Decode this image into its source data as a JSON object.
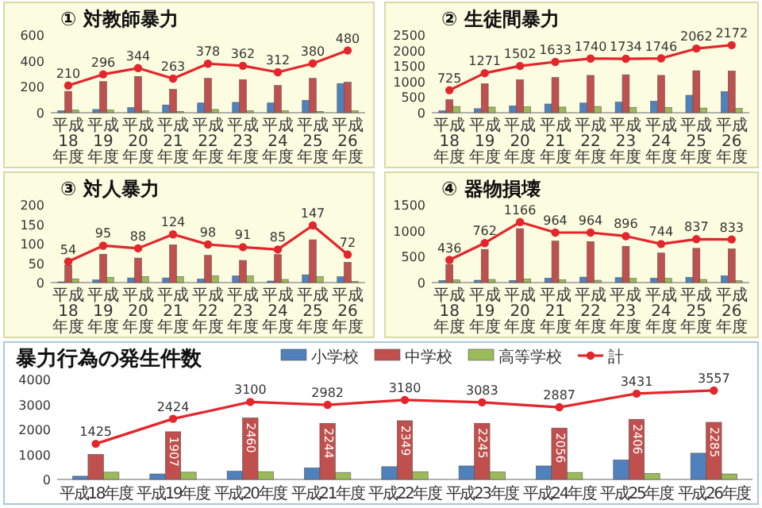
{
  "chart_data": [
    {
      "type": "bar",
      "title": "① 対教師暴力",
      "categories": [
        "平成18年度",
        "平成19年度",
        "平成20年度",
        "平成21年度",
        "平成22年度",
        "平成23年度",
        "平成24年度",
        "平成25年度",
        "平成26年度"
      ],
      "ylim": [
        0,
        600
      ],
      "yticks": [
        0,
        200,
        400,
        600
      ],
      "marker": "circle",
      "legend": false,
      "series": [
        {
          "color": "#4f81bd",
          "values": [
            15,
            25,
            40,
            60,
            75,
            80,
            75,
            95,
            225
          ]
        },
        {
          "color": "#c0504d",
          "values": [
            165,
            240,
            280,
            180,
            265,
            255,
            210,
            265,
            235
          ]
        },
        {
          "color": "#9bbb59",
          "values": [
            20,
            20,
            15,
            10,
            25,
            15,
            15,
            10,
            15
          ]
        },
        {
          "type": "line",
          "color": "#e3262b",
          "values": [
            210,
            296,
            344,
            263,
            378,
            362,
            312,
            380,
            480
          ],
          "value_labels": [
            "210",
            "296",
            "344",
            "263",
            "378",
            "362",
            "312",
            "380",
            "480"
          ]
        }
      ]
    },
    {
      "type": "bar",
      "title": "② 生徒間暴力",
      "categories": [
        "平成18年度",
        "平成19年度",
        "平成20年度",
        "平成21年度",
        "平成22年度",
        "平成23年度",
        "平成24年度",
        "平成25年度",
        "平成26年度"
      ],
      "ylim": [
        0,
        2500
      ],
      "yticks": [
        0,
        500,
        1000,
        1500,
        2000,
        2500
      ],
      "marker": "circle",
      "legend": false,
      "series": [
        {
          "color": "#4f81bd",
          "values": [
            60,
            130,
            220,
            280,
            310,
            340,
            370,
            560,
            680
          ]
        },
        {
          "color": "#c0504d",
          "values": [
            420,
            930,
            1060,
            1130,
            1200,
            1220,
            1200,
            1350,
            1340
          ]
        },
        {
          "color": "#9bbb59",
          "values": [
            200,
            180,
            190,
            180,
            200,
            170,
            170,
            150,
            140
          ]
        },
        {
          "type": "line",
          "color": "#e3262b",
          "values": [
            725,
            1271,
            1502,
            1633,
            1740,
            1734,
            1746,
            2062,
            2172
          ],
          "value_labels": [
            "725",
            "1271",
            "1502",
            "1633",
            "1740",
            "1734",
            "1746",
            "2062",
            "2172"
          ]
        }
      ]
    },
    {
      "type": "bar",
      "title": "③ 対人暴力",
      "categories": [
        "平成18年度",
        "平成19年度",
        "平成20年度",
        "平成21年度",
        "平成22年度",
        "平成23年度",
        "平成24年度",
        "平成25年度",
        "平成26年度"
      ],
      "ylim": [
        0,
        200
      ],
      "yticks": [
        0,
        50,
        100,
        150,
        200
      ],
      "marker": "circle",
      "legend": false,
      "series": [
        {
          "color": "#4f81bd",
          "values": [
            2,
            7,
            12,
            12,
            9,
            17,
            4,
            20,
            15
          ]
        },
        {
          "color": "#c0504d",
          "values": [
            45,
            73,
            63,
            97,
            70,
            57,
            72,
            110,
            52
          ]
        },
        {
          "color": "#9bbb59",
          "values": [
            9,
            13,
            15,
            15,
            17,
            17,
            8,
            15,
            3
          ]
        },
        {
          "type": "line",
          "color": "#e3262b",
          "values": [
            54,
            95,
            88,
            124,
            98,
            91,
            85,
            147,
            72
          ],
          "value_labels": [
            "54",
            "95",
            "88",
            "124",
            "98",
            "91",
            "85",
            "147",
            "72"
          ]
        }
      ]
    },
    {
      "type": "bar",
      "title": "④ 器物損壊",
      "categories": [
        "平成18年度",
        "平成19年度",
        "平成20年度",
        "平成21年度",
        "平成22年度",
        "平成23年度",
        "平成24年度",
        "平成25年度",
        "平成26年度"
      ],
      "ylim": [
        0,
        1500
      ],
      "yticks": [
        0,
        500,
        1000,
        1500
      ],
      "marker": "circle",
      "legend": false,
      "series": [
        {
          "color": "#4f81bd",
          "values": [
            40,
            45,
            40,
            85,
            105,
            95,
            85,
            100,
            130
          ]
        },
        {
          "color": "#c0504d",
          "values": [
            350,
            640,
            1040,
            800,
            790,
            700,
            570,
            660,
            650
          ]
        },
        {
          "color": "#9bbb59",
          "values": [
            50,
            60,
            70,
            55,
            45,
            80,
            80,
            60,
            35
          ]
        },
        {
          "type": "line",
          "color": "#e3262b",
          "values": [
            436,
            762,
            1166,
            964,
            964,
            896,
            744,
            837,
            833
          ],
          "value_labels": [
            "436",
            "762",
            "1166",
            "964",
            "964",
            "896",
            "744",
            "837",
            "833"
          ]
        }
      ]
    },
    {
      "type": "bar",
      "title": "暴力行為の発生件数",
      "categories": [
        "平成18年度",
        "平成19年度",
        "平成20年度",
        "平成21年度",
        "平成22年度",
        "平成23年度",
        "平成24年度",
        "平成25年度",
        "平成26年度"
      ],
      "ylim": [
        0,
        4000
      ],
      "yticks": [
        0,
        1000,
        2000,
        3000,
        4000
      ],
      "marker": "circle",
      "legend": "top",
      "series": [
        {
          "name": "小学校",
          "color": "#4f81bd",
          "values": [
            130,
            220,
            330,
            460,
            510,
            540,
            540,
            780,
            1050
          ]
        },
        {
          "name": "中学校",
          "color": "#c0504d",
          "values": [
            1000,
            1907,
            2460,
            2244,
            2349,
            2245,
            2056,
            2406,
            2285
          ],
          "value_labels": [
            null,
            "1907",
            "2460",
            "2244",
            "2349",
            "2245",
            "2056",
            "2406",
            "2285"
          ]
        },
        {
          "name": "高等学校",
          "color": "#9bbb59",
          "values": [
            290,
            290,
            310,
            280,
            310,
            300,
            280,
            240,
            220
          ]
        },
        {
          "name": "計",
          "type": "line",
          "color": "#e3262b",
          "values": [
            1425,
            2424,
            3100,
            2982,
            3180,
            3083,
            2887,
            3431,
            3557
          ],
          "value_labels": [
            "1425",
            "2424",
            "3100",
            "2982",
            "3180",
            "3083",
            "2887",
            "3431",
            "3557"
          ]
        }
      ]
    }
  ]
}
